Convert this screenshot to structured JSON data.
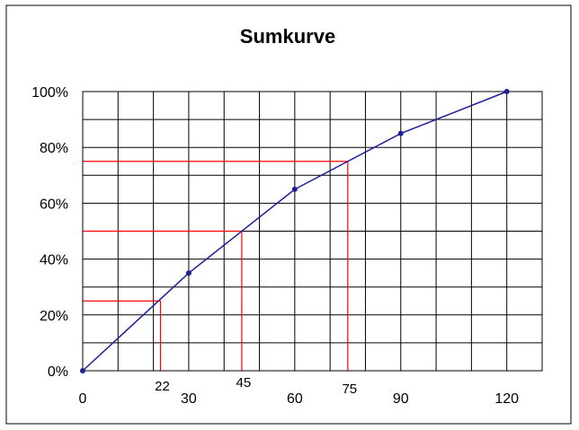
{
  "chart_data": {
    "type": "line",
    "title": "Sumkurve",
    "xlabel": "",
    "ylabel": "",
    "x": [
      0,
      30,
      60,
      90,
      120
    ],
    "series": [
      {
        "values": [
          0,
          35,
          65,
          85,
          100
        ],
        "color": "#1f1f9a"
      }
    ],
    "xlim": [
      0,
      130
    ],
    "ylim": [
      0,
      100
    ],
    "x_ticks": [
      "0",
      "30",
      "60",
      "90",
      "120"
    ],
    "y_ticks": [
      "0%",
      "20%",
      "40%",
      "60%",
      "80%",
      "100%"
    ],
    "grid": true,
    "annotations": [
      {
        "x": 22,
        "y": 25,
        "label": "22",
        "color": "#ff0000"
      },
      {
        "x": 45,
        "y": 50,
        "label": "45",
        "color": "#ff0000"
      },
      {
        "x": 75,
        "y": 75,
        "label": "75",
        "color": "#ff0000"
      }
    ]
  }
}
